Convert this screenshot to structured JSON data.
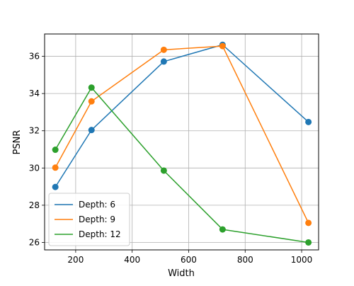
{
  "chart_data": {
    "type": "line",
    "title": "",
    "xlabel": "Width",
    "ylabel": "PSNR",
    "xlim": [
      90,
      1060
    ],
    "ylim": [
      25.6,
      37.2
    ],
    "x_ticks": [
      200,
      400,
      600,
      800,
      1000
    ],
    "y_ticks": [
      26,
      28,
      30,
      32,
      34,
      36
    ],
    "grid": true,
    "legend_position": "lower-left",
    "series": [
      {
        "name": "Depth: 6",
        "color": "#1f77b4",
        "x": [
          128,
          256,
          512,
          720,
          1024
        ],
        "y": [
          28.98,
          32.04,
          35.72,
          36.62,
          32.47
        ]
      },
      {
        "name": "Depth: 9",
        "color": "#ff7f0e",
        "x": [
          128,
          256,
          512,
          720,
          1024
        ],
        "y": [
          30.02,
          33.58,
          36.35,
          36.55,
          27.05
        ]
      },
      {
        "name": "Depth: 12",
        "color": "#2ca02c",
        "x": [
          128,
          256,
          512,
          720,
          1024
        ],
        "y": [
          30.98,
          34.32,
          29.86,
          26.7,
          26.0
        ]
      }
    ]
  }
}
